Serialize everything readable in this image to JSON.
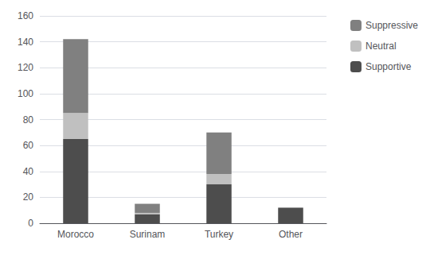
{
  "chart_data": {
    "type": "bar",
    "stacked": true,
    "categories": [
      "Morocco",
      "Surinam",
      "Turkey",
      "Other"
    ],
    "series": [
      {
        "name": "Supportive",
        "color": "#4d4d4d",
        "values": [
          65,
          7,
          30,
          12
        ]
      },
      {
        "name": "Neutral",
        "color": "#c0c0c0",
        "values": [
          20,
          1,
          8,
          0
        ]
      },
      {
        "name": "Suppressive",
        "color": "#808080",
        "values": [
          57,
          7,
          32,
          0
        ]
      }
    ],
    "ylim": [
      0,
      160
    ],
    "yticks": [
      0,
      20,
      40,
      60,
      80,
      100,
      120,
      140,
      160
    ],
    "grid": true,
    "legend": "upper right"
  }
}
